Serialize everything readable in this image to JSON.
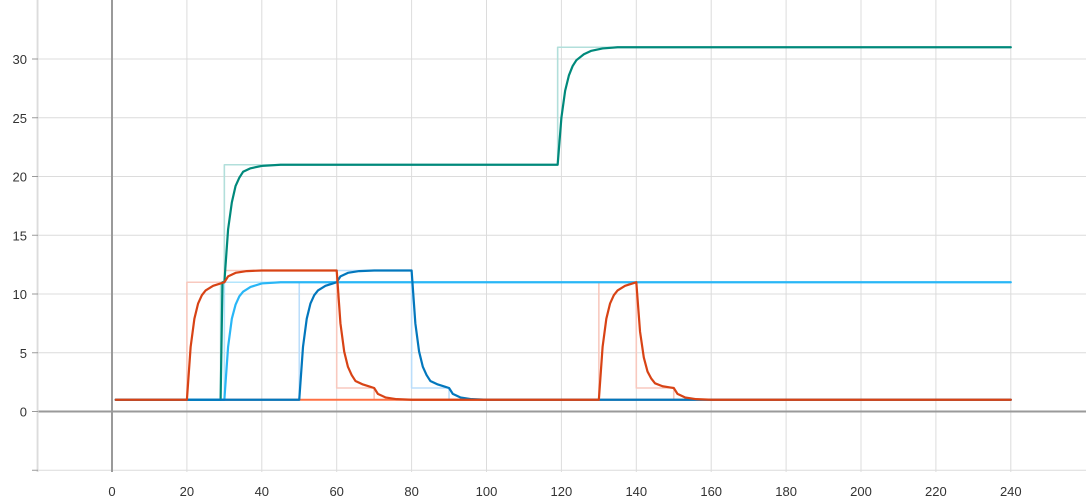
{
  "chart_data": {
    "type": "line",
    "title": "",
    "xlabel": "",
    "ylabel": "",
    "xlim": [
      -20,
      252
    ],
    "ylim": [
      -5,
      35
    ],
    "x_ticks": [
      "0",
      "20",
      "40",
      "60",
      "80",
      "100",
      "120",
      "140",
      "160",
      "180",
      "200",
      "220",
      "240"
    ],
    "y_ticks": [
      "0",
      "5",
      "10",
      "15",
      "20",
      "25",
      "30"
    ],
    "grid": true,
    "series": [
      {
        "color": "#b2dfdb",
        "role": "target",
        "points": [
          [
            1,
            1
          ],
          [
            29,
            1
          ],
          [
            29,
            11
          ],
          [
            30,
            11
          ],
          [
            30,
            21
          ],
          [
            119,
            21
          ],
          [
            119,
            31
          ],
          [
            240,
            31
          ]
        ]
      },
      {
        "color": "#00897b",
        "role": "actual",
        "points": [
          [
            1,
            1
          ],
          [
            29,
            1
          ],
          [
            29.5,
            11
          ],
          [
            30,
            11
          ],
          [
            31,
            15.5
          ],
          [
            32,
            17.8
          ],
          [
            33,
            19.2
          ],
          [
            34,
            19.9
          ],
          [
            35,
            20.4
          ],
          [
            37,
            20.7
          ],
          [
            40,
            20.9
          ],
          [
            45,
            21
          ],
          [
            119,
            21
          ],
          [
            120,
            25
          ],
          [
            121,
            27.3
          ],
          [
            122,
            28.6
          ],
          [
            123,
            29.4
          ],
          [
            124,
            29.9
          ],
          [
            126,
            30.4
          ],
          [
            128,
            30.7
          ],
          [
            131,
            30.9
          ],
          [
            135,
            31
          ],
          [
            240,
            31
          ]
        ]
      },
      {
        "color": "#b3e5fc",
        "role": "target",
        "points": [
          [
            1,
            1
          ],
          [
            30,
            1
          ],
          [
            30,
            11
          ],
          [
            240,
            11
          ]
        ]
      },
      {
        "color": "#29b6f6",
        "role": "actual",
        "points": [
          [
            1,
            1
          ],
          [
            30,
            1
          ],
          [
            31,
            5.5
          ],
          [
            32,
            7.9
          ],
          [
            33,
            9.1
          ],
          [
            34,
            9.8
          ],
          [
            35,
            10.2
          ],
          [
            37,
            10.6
          ],
          [
            40,
            10.9
          ],
          [
            45,
            11
          ],
          [
            240,
            11
          ]
        ]
      },
      {
        "color": "#bbdefb",
        "role": "target",
        "points": [
          [
            1,
            1
          ],
          [
            50,
            1
          ],
          [
            50,
            11
          ],
          [
            60,
            11
          ],
          [
            60,
            12
          ],
          [
            80,
            12
          ],
          [
            80,
            2
          ],
          [
            90,
            2
          ],
          [
            90,
            1
          ],
          [
            240,
            1
          ]
        ]
      },
      {
        "color": "#0277bd",
        "role": "actual",
        "points": [
          [
            1,
            1
          ],
          [
            50,
            1
          ],
          [
            51,
            5.5
          ],
          [
            52,
            7.9
          ],
          [
            53,
            9.2
          ],
          [
            54,
            9.9
          ],
          [
            55,
            10.3
          ],
          [
            57,
            10.7
          ],
          [
            59,
            10.9
          ],
          [
            60,
            11
          ],
          [
            61,
            11.5
          ],
          [
            63,
            11.8
          ],
          [
            66,
            11.95
          ],
          [
            70,
            12
          ],
          [
            80,
            12
          ],
          [
            81,
            7.5
          ],
          [
            82,
            5.1
          ],
          [
            83,
            3.8
          ],
          [
            84,
            3.1
          ],
          [
            85,
            2.6
          ],
          [
            87,
            2.3
          ],
          [
            89,
            2.1
          ],
          [
            90,
            2
          ],
          [
            91,
            1.5
          ],
          [
            93,
            1.2
          ],
          [
            96,
            1.05
          ],
          [
            100,
            1
          ],
          [
            240,
            1
          ]
        ]
      },
      {
        "color": "#f8c9bf",
        "role": "target",
        "points": [
          [
            1,
            1
          ],
          [
            20,
            1
          ],
          [
            20,
            11
          ],
          [
            30,
            11
          ],
          [
            30,
            12
          ],
          [
            60,
            12
          ],
          [
            60,
            2
          ],
          [
            70,
            2
          ],
          [
            70,
            1
          ],
          [
            130,
            1
          ],
          [
            130,
            11
          ],
          [
            140,
            11
          ],
          [
            140,
            2
          ],
          [
            150,
            2
          ],
          [
            150,
            1
          ],
          [
            240,
            1
          ]
        ]
      },
      {
        "color": "#d84315",
        "role": "actual",
        "points": [
          [
            1,
            1
          ],
          [
            20,
            1
          ],
          [
            21,
            5.5
          ],
          [
            22,
            7.9
          ],
          [
            23,
            9.2
          ],
          [
            24,
            9.9
          ],
          [
            25,
            10.3
          ],
          [
            27,
            10.7
          ],
          [
            29,
            10.9
          ],
          [
            30,
            11
          ],
          [
            31,
            11.5
          ],
          [
            33,
            11.8
          ],
          [
            36,
            11.95
          ],
          [
            40,
            12
          ],
          [
            60,
            12
          ],
          [
            61,
            7.5
          ],
          [
            62,
            5.1
          ],
          [
            63,
            3.8
          ],
          [
            64,
            3.1
          ],
          [
            65,
            2.6
          ],
          [
            67,
            2.3
          ],
          [
            69,
            2.1
          ],
          [
            70,
            2
          ],
          [
            71,
            1.5
          ],
          [
            73,
            1.2
          ],
          [
            76,
            1.05
          ],
          [
            80,
            1
          ],
          [
            130,
            1
          ],
          [
            131,
            5.5
          ],
          [
            132,
            7.9
          ],
          [
            133,
            9.2
          ],
          [
            134,
            9.9
          ],
          [
            135,
            10.3
          ],
          [
            137,
            10.7
          ],
          [
            139,
            10.9
          ],
          [
            140,
            11
          ],
          [
            141,
            6.8
          ],
          [
            142,
            4.6
          ],
          [
            143,
            3.4
          ],
          [
            144,
            2.8
          ],
          [
            145,
            2.4
          ],
          [
            147,
            2.15
          ],
          [
            149,
            2.05
          ],
          [
            150,
            2
          ],
          [
            151,
            1.5
          ],
          [
            153,
            1.2
          ],
          [
            156,
            1.05
          ],
          [
            160,
            1
          ],
          [
            240,
            1
          ]
        ]
      },
      {
        "color": "#ff7043",
        "role": "baseline",
        "points": [
          [
            1,
            1
          ],
          [
            240,
            1
          ]
        ]
      }
    ]
  }
}
